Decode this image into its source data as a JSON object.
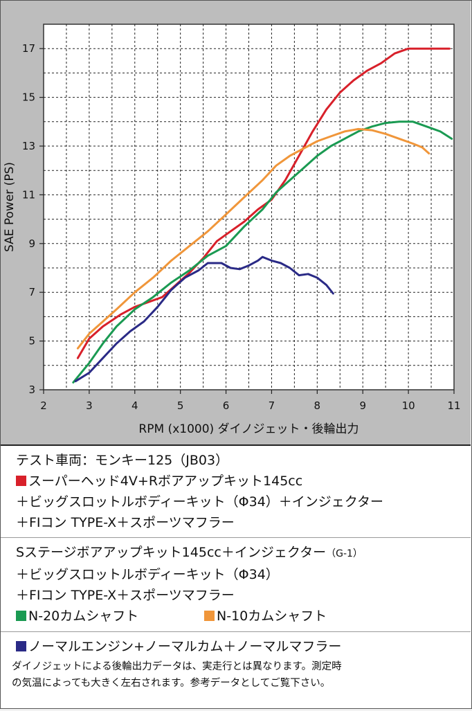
{
  "chart_data": {
    "type": "line",
    "ylabel": "SAE Power (PS)",
    "xlabel": "RPM (x1000) ダイノジェット・後輪出力",
    "xlim": [
      2,
      11
    ],
    "ylim": [
      3,
      18
    ],
    "xticks": [
      2,
      3,
      4,
      5,
      6,
      7,
      8,
      9,
      10,
      11
    ],
    "yticks": [
      3,
      5,
      7,
      9,
      11,
      13,
      15,
      17
    ],
    "grid": true,
    "series": [
      {
        "key": "red",
        "color": "#d8202a",
        "points": [
          [
            2.75,
            4.3
          ],
          [
            3.0,
            5.1
          ],
          [
            3.3,
            5.6
          ],
          [
            3.7,
            6.1
          ],
          [
            4.0,
            6.4
          ],
          [
            4.3,
            6.6
          ],
          [
            4.6,
            6.8
          ],
          [
            4.9,
            7.3
          ],
          [
            5.2,
            7.8
          ],
          [
            5.5,
            8.4
          ],
          [
            5.8,
            9.1
          ],
          [
            6.1,
            9.5
          ],
          [
            6.4,
            9.9
          ],
          [
            6.7,
            10.4
          ],
          [
            7.0,
            10.8
          ],
          [
            7.3,
            11.6
          ],
          [
            7.6,
            12.6
          ],
          [
            7.9,
            13.6
          ],
          [
            8.2,
            14.5
          ],
          [
            8.5,
            15.2
          ],
          [
            8.8,
            15.7
          ],
          [
            9.1,
            16.1
          ],
          [
            9.4,
            16.4
          ],
          [
            9.7,
            16.8
          ],
          [
            10.0,
            17.0
          ],
          [
            10.3,
            17.0
          ],
          [
            10.6,
            17.0
          ],
          [
            10.9,
            17.0
          ]
        ]
      },
      {
        "key": "green",
        "color": "#1a9a52",
        "points": [
          [
            2.65,
            3.3
          ],
          [
            3.0,
            4.1
          ],
          [
            3.3,
            4.9
          ],
          [
            3.6,
            5.6
          ],
          [
            4.0,
            6.3
          ],
          [
            4.4,
            6.8
          ],
          [
            4.8,
            7.4
          ],
          [
            5.2,
            7.9
          ],
          [
            5.6,
            8.5
          ],
          [
            6.0,
            8.9
          ],
          [
            6.4,
            9.7
          ],
          [
            6.8,
            10.4
          ],
          [
            7.1,
            11.1
          ],
          [
            7.4,
            11.6
          ],
          [
            7.7,
            12.1
          ],
          [
            8.0,
            12.6
          ],
          [
            8.3,
            13.0
          ],
          [
            8.6,
            13.3
          ],
          [
            8.9,
            13.6
          ],
          [
            9.2,
            13.8
          ],
          [
            9.5,
            13.95
          ],
          [
            9.8,
            14.0
          ],
          [
            10.1,
            14.0
          ],
          [
            10.4,
            13.8
          ],
          [
            10.7,
            13.6
          ],
          [
            10.95,
            13.3
          ]
        ]
      },
      {
        "key": "orange",
        "color": "#f0963a",
        "points": [
          [
            2.75,
            4.7
          ],
          [
            3.0,
            5.3
          ],
          [
            3.3,
            5.8
          ],
          [
            3.6,
            6.3
          ],
          [
            4.0,
            7.0
          ],
          [
            4.4,
            7.6
          ],
          [
            4.8,
            8.3
          ],
          [
            5.2,
            8.9
          ],
          [
            5.6,
            9.5
          ],
          [
            6.0,
            10.2
          ],
          [
            6.4,
            10.9
          ],
          [
            6.8,
            11.6
          ],
          [
            7.1,
            12.2
          ],
          [
            7.4,
            12.6
          ],
          [
            7.7,
            12.9
          ],
          [
            8.0,
            13.2
          ],
          [
            8.3,
            13.4
          ],
          [
            8.6,
            13.6
          ],
          [
            8.9,
            13.7
          ],
          [
            9.2,
            13.65
          ],
          [
            9.5,
            13.5
          ],
          [
            9.8,
            13.3
          ],
          [
            10.1,
            13.1
          ],
          [
            10.3,
            12.95
          ],
          [
            10.45,
            12.7
          ]
        ]
      },
      {
        "key": "blue",
        "color": "#2a2a86",
        "points": [
          [
            2.7,
            3.35
          ],
          [
            3.0,
            3.7
          ],
          [
            3.3,
            4.3
          ],
          [
            3.6,
            4.9
          ],
          [
            3.9,
            5.4
          ],
          [
            4.2,
            5.8
          ],
          [
            4.5,
            6.4
          ],
          [
            4.8,
            7.1
          ],
          [
            5.1,
            7.6
          ],
          [
            5.4,
            7.9
          ],
          [
            5.6,
            8.2
          ],
          [
            5.9,
            8.2
          ],
          [
            6.1,
            8.0
          ],
          [
            6.3,
            7.95
          ],
          [
            6.5,
            8.1
          ],
          [
            6.7,
            8.3
          ],
          [
            6.8,
            8.45
          ],
          [
            7.0,
            8.3
          ],
          [
            7.2,
            8.2
          ],
          [
            7.4,
            8.0
          ],
          [
            7.6,
            7.7
          ],
          [
            7.8,
            7.75
          ],
          [
            8.0,
            7.6
          ],
          [
            8.2,
            7.3
          ],
          [
            8.35,
            6.95
          ]
        ]
      }
    ]
  },
  "legend": {
    "section1": {
      "title": "テスト車両：モンキー125（JB03）",
      "line1": "スーパーヘッド4V+Rボアアップキット145cc",
      "line2": "＋ビッグスロットルボディーキット（Φ34）＋インジェクター",
      "line3": "＋FIコン TYPE-X＋スポーツマフラー",
      "color": "#d8202a"
    },
    "section2": {
      "line1": "Sステージボアアップキット145cc＋インジェクター",
      "line1_small": "（G-1）",
      "line2": "＋ビッグスロットルボディーキット（Φ34）",
      "line3": "＋FIコン TYPE-X＋スポーツマフラー",
      "green_label": "N-20カムシャフト",
      "green_color": "#1a9a52",
      "orange_label": "N-10カムシャフト",
      "orange_color": "#f0963a"
    },
    "section3": {
      "blue_label": "ノーマルエンジン+ノーマルカム＋ノーマルマフラー",
      "blue_color": "#2a2a86",
      "note1": "ダイノジェットによる後輪出力データは、実走行とは異なります。測定時",
      "note2": "の気温によっても大きく左右されます。参考データとしてご覧下さい。"
    }
  }
}
